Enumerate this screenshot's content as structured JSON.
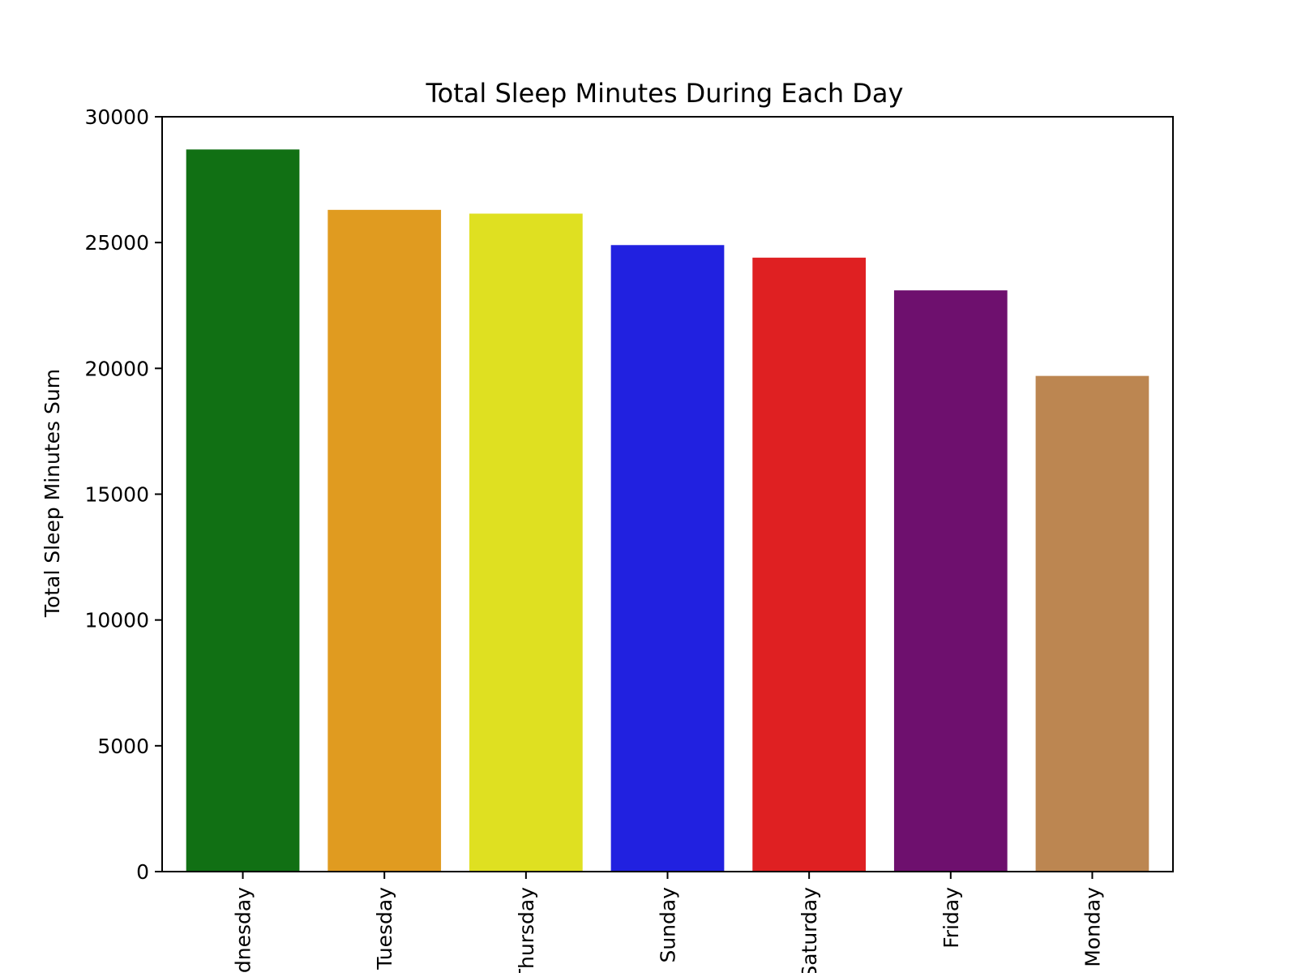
{
  "chart_data": {
    "type": "bar",
    "title": "Total Sleep Minutes During Each Day",
    "xlabel": "",
    "ylabel": "Total Sleep Minutes Sum",
    "categories": [
      "Wednesday",
      "Tuesday",
      "Thursday",
      "Sunday",
      "Saturday",
      "Friday",
      "Monday"
    ],
    "values": [
      28700,
      26300,
      26150,
      24900,
      24400,
      23100,
      19700
    ],
    "colors": [
      "#117014",
      "#e09b20",
      "#dfe021",
      "#2121e0",
      "#df2022",
      "#6e106e",
      "#bc8651"
    ],
    "ylim": [
      0,
      30000
    ],
    "yticks": [
      0,
      5000,
      10000,
      15000,
      20000,
      25000,
      30000
    ],
    "ytick_labels": [
      "0",
      "5000",
      "10000",
      "15000",
      "20000",
      "25000",
      "30000"
    ],
    "grid": false,
    "legend": "none"
  }
}
